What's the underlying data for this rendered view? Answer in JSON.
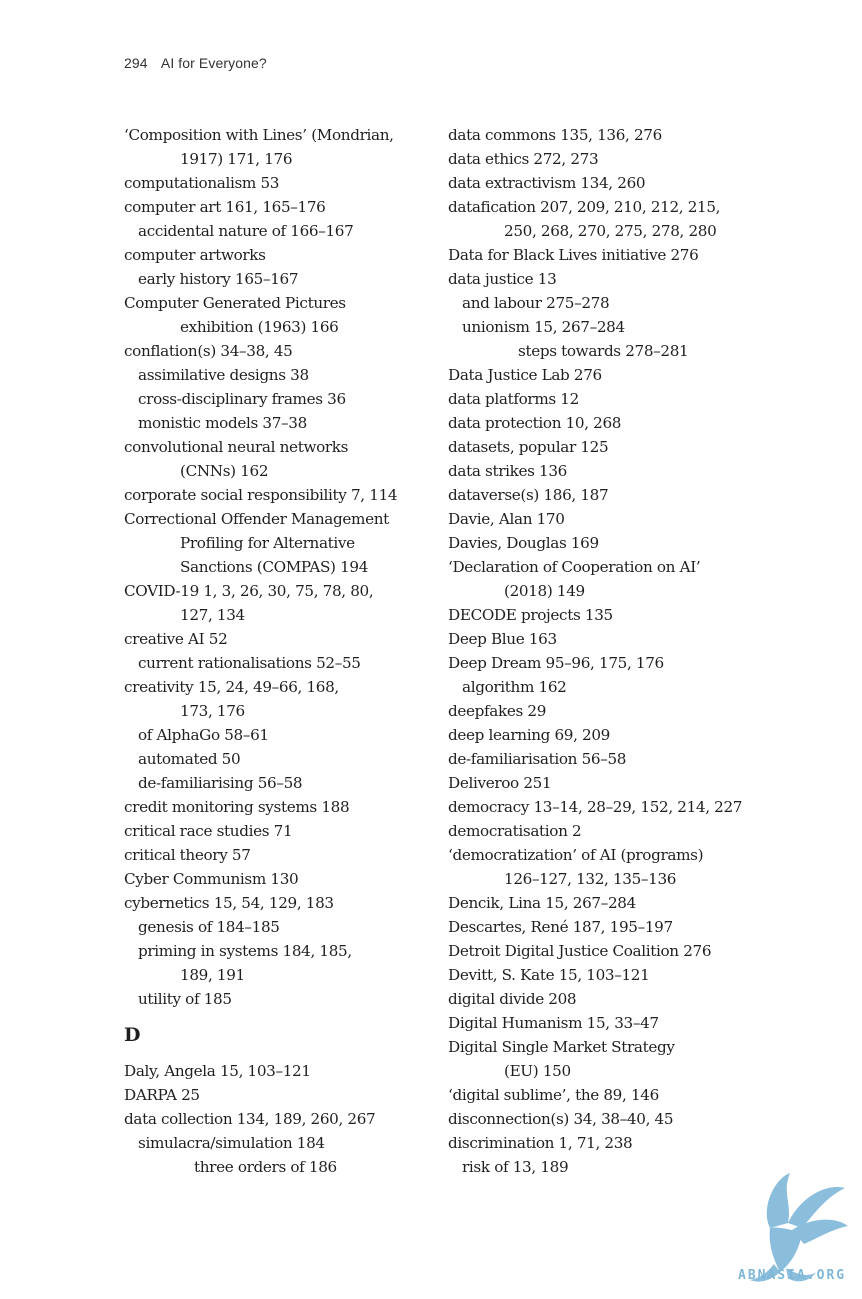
{
  "header": {
    "page_number": "294",
    "book_title": "AI for Everyone?"
  },
  "left_column": [
    {
      "level": 0,
      "text": "‘Composition with Lines’ (Mondrian,"
    },
    {
      "level": 2,
      "text": "1917)  171, 176"
    },
    {
      "level": 0,
      "text": "computationalism  53"
    },
    {
      "level": 0,
      "text": "computer art  161, 165–176"
    },
    {
      "level": 1,
      "text": "accidental nature of  166–167"
    },
    {
      "level": 0,
      "text": "computer artworks"
    },
    {
      "level": 1,
      "text": "early history  165–167"
    },
    {
      "level": 0,
      "text": "Computer Generated Pictures"
    },
    {
      "level": 2,
      "text": "exhibition (1963)  166"
    },
    {
      "level": 0,
      "text": "conflation(s)  34–38, 45"
    },
    {
      "level": 1,
      "text": "assimilative designs  38"
    },
    {
      "level": 1,
      "text": "cross-disciplinary frames  36"
    },
    {
      "level": 1,
      "text": "monistic models  37–38"
    },
    {
      "level": 0,
      "text": "convolutional neural networks"
    },
    {
      "level": 2,
      "text": "(CNNs)  162"
    },
    {
      "level": 0,
      "text": "corporate social responsibility  7, 114"
    },
    {
      "level": 0,
      "text": "Correctional Offender Management"
    },
    {
      "level": 2,
      "text": "Profiling for Alternative"
    },
    {
      "level": 2,
      "text": "Sanctions (COMPAS)  194"
    },
    {
      "level": 0,
      "text": "COVID-19  1, 3, 26, 30, 75, 78, 80,"
    },
    {
      "level": 2,
      "text": "127, 134"
    },
    {
      "level": 0,
      "text": "creative AI  52"
    },
    {
      "level": 1,
      "text": "current rationalisations  52–55"
    },
    {
      "level": 0,
      "text": "creativity  15, 24, 49–66, 168,"
    },
    {
      "level": 2,
      "text": "173, 176"
    },
    {
      "level": 1,
      "text": "of AlphaGo  58–61"
    },
    {
      "level": 1,
      "text": "automated  50"
    },
    {
      "level": 1,
      "text": "de-familiarising  56–58"
    },
    {
      "level": 0,
      "text": "credit monitoring systems  188"
    },
    {
      "level": 0,
      "text": "critical race studies  71"
    },
    {
      "level": 0,
      "text": "critical theory  57"
    },
    {
      "level": 0,
      "text": "Cyber Communism  130"
    },
    {
      "level": 0,
      "text": "cybernetics  15, 54, 129, 183"
    },
    {
      "level": 1,
      "text": "genesis of  184–185"
    },
    {
      "level": 1,
      "text": "priming in systems  184, 185,"
    },
    {
      "level": 2,
      "text": "189, 191"
    },
    {
      "level": 1,
      "text": "utility of  185"
    },
    {
      "level": "letter",
      "text": "D"
    },
    {
      "level": 0,
      "text": "Daly, Angela  15, 103–121"
    },
    {
      "level": 0,
      "text": "DARPA  25"
    },
    {
      "level": 0,
      "text": "data collection  134, 189, 260, 267"
    },
    {
      "level": 1,
      "text": "simulacra/simulation  184"
    },
    {
      "level": 3,
      "text": "three orders of  186"
    }
  ],
  "right_column": [
    {
      "level": 0,
      "text": "data commons  135, 136, 276"
    },
    {
      "level": 0,
      "text": "data ethics  272, 273"
    },
    {
      "level": 0,
      "text": "data extractivism  134, 260"
    },
    {
      "level": 0,
      "text": "datafication  207, 209, 210, 212, 215,"
    },
    {
      "level": 2,
      "text": "250, 268, 270, 275, 278, 280"
    },
    {
      "level": 0,
      "text": "Data for Black Lives initiative  276"
    },
    {
      "level": 0,
      "text": "data justice  13"
    },
    {
      "level": 1,
      "text": "and labour  275–278"
    },
    {
      "level": 1,
      "text": "unionism  15, 267–284"
    },
    {
      "level": 3,
      "text": "steps towards  278–281"
    },
    {
      "level": 0,
      "text": "Data Justice Lab  276"
    },
    {
      "level": 0,
      "text": "data platforms  12"
    },
    {
      "level": 0,
      "text": "data protection  10, 268"
    },
    {
      "level": 0,
      "text": "datasets, popular  125"
    },
    {
      "level": 0,
      "text": "data strikes  136"
    },
    {
      "level": 0,
      "text": "dataverse(s)  186, 187"
    },
    {
      "level": 0,
      "text": "Davie, Alan  170"
    },
    {
      "level": 0,
      "text": "Davies, Douglas  169"
    },
    {
      "level": 0,
      "text": "‘Declaration of Cooperation on AI’"
    },
    {
      "level": 2,
      "text": "(2018)  149"
    },
    {
      "level": 0,
      "text": "DECODE projects  135"
    },
    {
      "level": 0,
      "text": "Deep Blue  163"
    },
    {
      "level": 0,
      "text": "Deep Dream  95–96, 175, 176"
    },
    {
      "level": 1,
      "text": "algorithm  162"
    },
    {
      "level": 0,
      "text": "deepfakes  29"
    },
    {
      "level": 0,
      "text": "deep learning  69, 209"
    },
    {
      "level": 0,
      "text": "de-familiarisation  56–58"
    },
    {
      "level": 0,
      "text": "Deliveroo  251"
    },
    {
      "level": 0,
      "text": "democracy  13–14, 28–29, 152, 214, 227"
    },
    {
      "level": 0,
      "text": "democratisation  2"
    },
    {
      "level": 0,
      "text": "‘democratization’ of AI (programs)"
    },
    {
      "level": 2,
      "text": "126–127, 132, 135–136"
    },
    {
      "level": 0,
      "text": "Dencik, Lina  15, 267–284"
    },
    {
      "level": 0,
      "text": "Descartes, René  187, 195–197"
    },
    {
      "level": 0,
      "text": "Detroit Digital Justice Coalition  276"
    },
    {
      "level": 0,
      "text": "Devitt, S. Kate  15, 103–121"
    },
    {
      "level": 0,
      "text": "digital divide  208"
    },
    {
      "level": 0,
      "text": "Digital Humanism  15, 33–47"
    },
    {
      "level": 0,
      "text": "Digital Single Market Strategy"
    },
    {
      "level": 2,
      "text": "(EU)  150"
    },
    {
      "level": 0,
      "text": "‘digital sublime’, the  89, 146"
    },
    {
      "level": 0,
      "text": "disconnection(s)  34, 38–40, 45"
    },
    {
      "level": 0,
      "text": "discrimination  1, 71, 238"
    },
    {
      "level": 1,
      "text": "risk of  13, 189"
    }
  ],
  "watermark": {
    "text": "ABNASIA.ORG",
    "color": "#7fb7d9"
  }
}
